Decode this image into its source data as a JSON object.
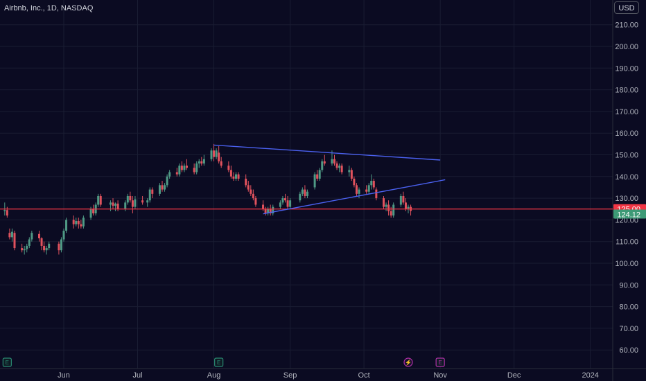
{
  "header": {
    "title": "Airbnb, Inc., 1D, NASDAQ",
    "currency_button": "USD"
  },
  "colors": {
    "background": "#0b0b22",
    "grid": "#1a1d33",
    "up": "#4f9a85",
    "down": "#e0525d",
    "trendline": "#4b61f0",
    "hline": "#f23645",
    "current_price_bg": "#3d9a76",
    "earnings": "#2a8a72",
    "dividend": "#b030a8"
  },
  "chart_data": {
    "type": "candlestick",
    "title": "Airbnb, Inc., 1D, NASDAQ",
    "yaxis": {
      "range": [
        55,
        215
      ],
      "ticks": [
        "210.00",
        "200.00",
        "190.00",
        "180.00",
        "170.00",
        "160.00",
        "150.00",
        "140.00",
        "130.00",
        "120.00",
        "110.00",
        "100.00",
        "90.00",
        "80.00",
        "70.00",
        "60.00"
      ],
      "side": "right"
    },
    "xaxis": {
      "ticks": [
        "Jun",
        "Jul",
        "Aug",
        "Sep",
        "Oct",
        "Nov",
        "Dec",
        "2024"
      ],
      "grid": true
    },
    "horizontal_line": {
      "price": 125.0,
      "label": "125.00"
    },
    "current_price": {
      "price": 124.12,
      "label": "124.12"
    },
    "trendlines": [
      {
        "from": {
          "date": "Aug 1",
          "price": 154.5
        },
        "to": {
          "date": "Nov 1",
          "price": 147.6
        }
      },
      {
        "from": {
          "date": "Aug 21",
          "price": 122.8
        },
        "to": {
          "date": "Nov 3",
          "price": 138.5
        }
      }
    ],
    "events": [
      {
        "date": "May 9",
        "type": "earnings",
        "glyph": "E"
      },
      {
        "date": "Aug 3",
        "type": "earnings",
        "glyph": "E"
      },
      {
        "date": "Oct 19",
        "type": "split",
        "glyph": "⚡"
      },
      {
        "date": "Nov 1",
        "type": "earnings",
        "glyph": "E"
      }
    ],
    "ohlc": [
      [
        "May 8",
        124,
        128,
        122,
        124.5
      ],
      [
        "May 9",
        124.5,
        126,
        121,
        122
      ],
      [
        "May 10",
        114,
        116,
        111,
        112
      ],
      [
        "May 11",
        112,
        116,
        110,
        114.5
      ],
      [
        "May 12",
        114,
        115,
        106,
        107
      ],
      [
        "May 15",
        107,
        109,
        105,
        106
      ],
      [
        "May 16",
        106,
        108,
        104,
        106.5
      ],
      [
        "May 17",
        106.5,
        109,
        105,
        108
      ],
      [
        "May 18",
        108,
        112,
        107,
        111
      ],
      [
        "May 19",
        111,
        115,
        110,
        114
      ],
      [
        "May 22",
        113.5,
        115,
        110,
        111.5
      ],
      [
        "May 23",
        111.5,
        112,
        106,
        108
      ],
      [
        "May 24",
        108,
        110,
        105,
        106
      ],
      [
        "May 25",
        106,
        108,
        104,
        107
      ],
      [
        "May 26",
        107,
        110,
        106,
        109
      ],
      [
        "May 30",
        109,
        110,
        104,
        106
      ],
      [
        "May 31",
        106,
        112,
        105,
        111
      ],
      [
        "Jun 1",
        111,
        116,
        110,
        115
      ],
      [
        "Jun 2",
        115,
        121,
        114,
        120
      ],
      [
        "Jun 5",
        120,
        122,
        116,
        118
      ],
      [
        "Jun 6",
        118,
        121,
        117,
        119.5
      ],
      [
        "Jun 7",
        119.5,
        121,
        116,
        118
      ],
      [
        "Jun 8",
        118,
        120,
        116,
        117
      ],
      [
        "Jun 9",
        117,
        122,
        116,
        121
      ],
      [
        "Jun 12",
        121,
        126,
        120,
        125
      ],
      [
        "Jun 13",
        125,
        127,
        122,
        123
      ],
      [
        "Jun 14",
        123,
        128,
        122,
        127
      ],
      [
        "Jun 15",
        127,
        132,
        126,
        131
      ],
      [
        "Jun 16",
        131,
        132,
        126,
        127
      ],
      [
        "Jun 20",
        127,
        129,
        124,
        128
      ],
      [
        "Jun 21",
        128,
        130,
        125,
        126.5
      ],
      [
        "Jun 22",
        126.5,
        128,
        124,
        127.5
      ],
      [
        "Jun 23",
        127.5,
        129,
        124,
        125
      ],
      [
        "Jun 26",
        125,
        129,
        124,
        128
      ],
      [
        "Jun 27",
        128,
        132,
        127,
        131
      ],
      [
        "Jun 28",
        131,
        133,
        128,
        129
      ],
      [
        "Jun 29",
        129,
        131,
        123,
        126
      ],
      [
        "Jun 30",
        126,
        131,
        125,
        129.5
      ],
      [
        "Jul 3",
        129,
        131,
        127,
        128
      ],
      [
        "Jul 5",
        128,
        130,
        126,
        129
      ],
      [
        "Jul 6",
        129,
        135,
        128,
        134
      ],
      [
        "Jul 7",
        134,
        135,
        130,
        132
      ],
      [
        "Jul 10",
        132,
        137,
        131,
        136
      ],
      [
        "Jul 11",
        136,
        138,
        133,
        134
      ],
      [
        "Jul 12",
        134,
        137,
        133,
        136
      ],
      [
        "Jul 13",
        136,
        141,
        135,
        140
      ],
      [
        "Jul 14",
        140,
        143,
        139,
        142
      ],
      [
        "Jul 17",
        142,
        144,
        140,
        141
      ],
      [
        "Jul 18",
        141,
        146,
        140,
        145
      ],
      [
        "Jul 19",
        145,
        147,
        142,
        143
      ],
      [
        "Jul 20",
        143,
        146,
        142,
        145
      ],
      [
        "Jul 21",
        145,
        148,
        143,
        144
      ],
      [
        "Jul 24",
        144,
        146,
        141,
        142
      ],
      [
        "Jul 25",
        142,
        147,
        141,
        146
      ],
      [
        "Jul 26",
        146,
        148,
        144,
        147
      ],
      [
        "Jul 27",
        147,
        149,
        145,
        146
      ],
      [
        "Jul 28",
        146,
        150,
        145,
        148
      ],
      [
        "Jul 31",
        148,
        153,
        147,
        152
      ],
      [
        "Aug 1",
        152,
        155,
        147,
        149
      ],
      [
        "Aug 2",
        149,
        153,
        148,
        152
      ],
      [
        "Aug 3",
        151,
        154,
        146,
        147
      ],
      [
        "Aug 4",
        147,
        149,
        144,
        145
      ],
      [
        "Aug 7",
        145,
        147,
        142,
        143
      ],
      [
        "Aug 8",
        143,
        145,
        139,
        140
      ],
      [
        "Aug 9",
        140,
        142,
        138,
        139
      ],
      [
        "Aug 10",
        139,
        142,
        138,
        141
      ],
      [
        "Aug 11",
        141,
        142,
        138,
        139
      ],
      [
        "Aug 14",
        139,
        141,
        135,
        136
      ],
      [
        "Aug 15",
        136,
        138,
        133,
        134
      ],
      [
        "Aug 16",
        134,
        136,
        131,
        132
      ],
      [
        "Aug 17",
        132,
        134,
        129,
        130
      ],
      [
        "Aug 18",
        130,
        131,
        126,
        127
      ],
      [
        "Aug 21",
        127,
        129,
        124,
        125
      ],
      [
        "Aug 22",
        125,
        126,
        122,
        123
      ],
      [
        "Aug 23",
        123,
        126,
        122,
        125
      ],
      [
        "Aug 24",
        125,
        127,
        122,
        123
      ],
      [
        "Aug 25",
        123,
        127,
        122,
        126
      ],
      [
        "Aug 28",
        126,
        129,
        125,
        128
      ],
      [
        "Aug 29",
        128,
        131,
        127,
        130
      ],
      [
        "Aug 30",
        130,
        132,
        128,
        129
      ],
      [
        "Aug 31",
        129,
        131,
        125,
        126
      ],
      [
        "Sep 1",
        126,
        130,
        125,
        129
      ],
      [
        "Sep 5",
        129,
        133,
        128,
        132
      ],
      [
        "Sep 6",
        132,
        135,
        131,
        134
      ],
      [
        "Sep 7",
        134,
        136,
        130,
        131
      ],
      [
        "Sep 8",
        131,
        134,
        130,
        133
      ],
      [
        "Sep 11",
        135,
        142,
        134,
        141
      ],
      [
        "Sep 12",
        141,
        143,
        138,
        139
      ],
      [
        "Sep 13",
        139,
        144,
        138,
        143
      ],
      [
        "Sep 14",
        143,
        148,
        142,
        147
      ],
      [
        "Sep 15",
        147,
        150,
        145,
        146
      ],
      [
        "Sep 18",
        146,
        152,
        145,
        148
      ],
      [
        "Sep 19",
        148,
        150,
        145,
        146
      ],
      [
        "Sep 20",
        146,
        147,
        143,
        144
      ],
      [
        "Sep 21",
        144,
        146,
        142,
        145
      ],
      [
        "Sep 22",
        145,
        146,
        141,
        142
      ],
      [
        "Sep 25",
        142,
        145,
        140,
        143
      ],
      [
        "Sep 26",
        143,
        144,
        138,
        139
      ],
      [
        "Sep 27",
        139,
        140,
        135,
        136
      ],
      [
        "Sep 28",
        136,
        137,
        131,
        132
      ],
      [
        "Sep 29",
        132,
        135,
        130,
        134
      ],
      [
        "Oct 2",
        134,
        136,
        132,
        133
      ],
      [
        "Oct 3",
        133,
        137,
        132,
        136
      ],
      [
        "Oct 4",
        136,
        141,
        134,
        138
      ],
      [
        "Oct 5",
        138,
        139,
        134,
        135
      ],
      [
        "Oct 6",
        134,
        135,
        129,
        130
      ],
      [
        "Oct 9",
        130,
        131,
        125,
        126
      ],
      [
        "Oct 10",
        126,
        128,
        124,
        127
      ],
      [
        "Oct 11",
        127,
        129,
        122,
        124
      ],
      [
        "Oct 12",
        124,
        126,
        121,
        122
      ],
      [
        "Oct 13",
        122,
        128,
        121,
        127
      ],
      [
        "Oct 16",
        127,
        132,
        126,
        131
      ],
      [
        "Oct 17",
        131,
        133,
        127,
        128
      ],
      [
        "Oct 18",
        128,
        130,
        124,
        125
      ],
      [
        "Oct 19",
        125,
        127,
        123,
        126
      ],
      [
        "Oct 20",
        126,
        127,
        122,
        124.12
      ]
    ]
  }
}
